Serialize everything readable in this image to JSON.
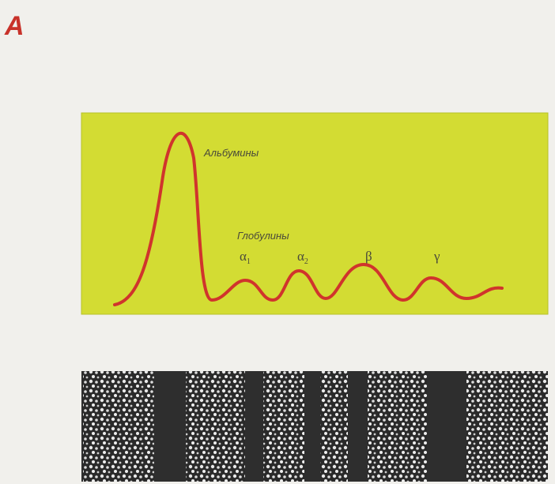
{
  "panel_label": "A",
  "labels": {
    "albumins": "Альбумины",
    "globulins": "Глобулины",
    "fractions": [
      {
        "symbol": "α",
        "subscript": "1"
      },
      {
        "symbol": "α",
        "subscript": "2"
      },
      {
        "symbol": "β"
      },
      {
        "symbol": "γ"
      }
    ]
  }
}
